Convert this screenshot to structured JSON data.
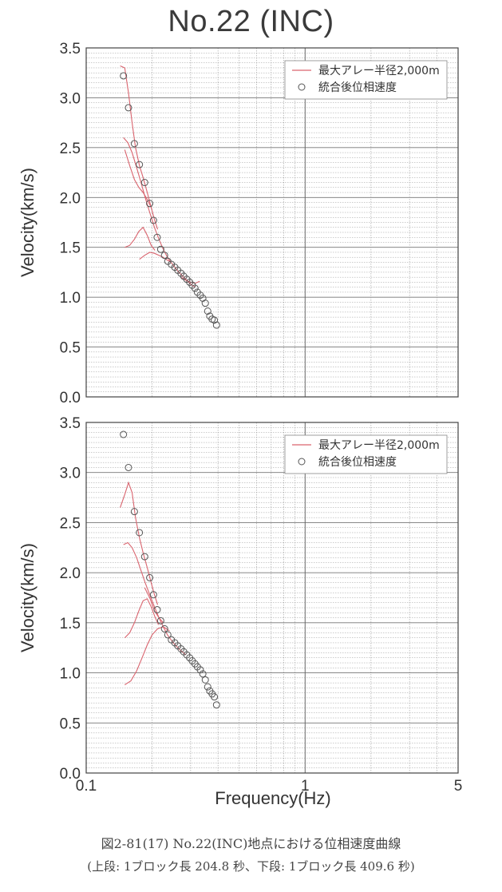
{
  "title": "No.22 (INC)",
  "caption": {
    "line1": "図2-81(17) No.22(INC)地点における位相速度曲線",
    "line2": "(上段: 1ブロック長 204.8 秒、下段: 1ブロック長 409.6 秒)"
  },
  "colors": {
    "curve": "#d9646e",
    "marker": "#555555",
    "grid": "#9a9a9a",
    "axis": "#444444"
  },
  "chart_data": [
    {
      "type": "scatter",
      "xscale": "log",
      "xlim": [
        0.1,
        5
      ],
      "ylim": [
        0,
        3.5
      ],
      "xlabel": "",
      "ylabel": "Velocity(km/s)",
      "xticks": [
        "0.1",
        "1",
        "5"
      ],
      "yticks": [
        "0.0",
        "0.5",
        "1.0",
        "1.5",
        "2.0",
        "2.5",
        "3.0",
        "3.5"
      ],
      "grid": true,
      "legend_position": "top-right",
      "legend": [
        "最大アレー半径2,000m",
        "統合後位相速度"
      ],
      "series": [
        {
          "kind": "points",
          "x": [
            0.148,
            0.156,
            0.166,
            0.175,
            0.185,
            0.195,
            0.203,
            0.211,
            0.219,
            0.228,
            0.236,
            0.245,
            0.254,
            0.262,
            0.271,
            0.279,
            0.288,
            0.297,
            0.305,
            0.314,
            0.322,
            0.332,
            0.341,
            0.35,
            0.359,
            0.367,
            0.376,
            0.385,
            0.394
          ],
          "y": [
            3.22,
            2.9,
            2.54,
            2.33,
            2.15,
            1.94,
            1.77,
            1.6,
            1.48,
            1.42,
            1.36,
            1.33,
            1.3,
            1.27,
            1.24,
            1.21,
            1.18,
            1.15,
            1.12,
            1.09,
            1.05,
            1.02,
            0.99,
            0.94,
            0.86,
            0.81,
            0.78,
            0.77,
            0.72
          ]
        },
        {
          "kind": "curves",
          "lines": [
            {
              "x": [
                0.143,
                0.15,
                0.156,
                0.162,
                0.168,
                0.175,
                0.182,
                0.19,
                0.198,
                0.205,
                0.212
              ],
              "y": [
                3.32,
                3.3,
                3.05,
                2.75,
                2.5,
                2.32,
                2.2,
                2.05,
                1.9,
                1.78,
                1.68
              ]
            },
            {
              "x": [
                0.148,
                0.155,
                0.162,
                0.17,
                0.178,
                0.186,
                0.195,
                0.205,
                0.215,
                0.225,
                0.235,
                0.25,
                0.265,
                0.285,
                0.3,
                0.315
              ],
              "y": [
                2.6,
                2.55,
                2.45,
                2.3,
                2.15,
                2.0,
                1.85,
                1.7,
                1.58,
                1.48,
                1.4,
                1.32,
                1.25,
                1.18,
                1.13,
                1.1
              ]
            },
            {
              "x": [
                0.15,
                0.158,
                0.166,
                0.174,
                0.182,
                0.19,
                0.198
              ],
              "y": [
                2.48,
                2.32,
                2.18,
                2.1,
                2.05,
                1.98,
                1.9
              ]
            },
            {
              "x": [
                0.15,
                0.158,
                0.166,
                0.174,
                0.182,
                0.19,
                0.198,
                0.206
              ],
              "y": [
                1.5,
                1.52,
                1.58,
                1.66,
                1.7,
                1.62,
                1.52,
                1.47
              ]
            },
            {
              "x": [
                0.175,
                0.185,
                0.195,
                0.205,
                0.215,
                0.225,
                0.235,
                0.245
              ],
              "y": [
                1.38,
                1.42,
                1.45,
                1.44,
                1.42,
                1.4,
                1.37,
                1.35
              ]
            },
            {
              "x": [
                0.27,
                0.285,
                0.3,
                0.315,
                0.33
              ],
              "y": [
                1.2,
                1.17,
                1.15,
                1.14,
                1.16
              ]
            }
          ]
        }
      ]
    },
    {
      "type": "scatter",
      "xscale": "log",
      "xlim": [
        0.1,
        5
      ],
      "ylim": [
        0,
        3.5
      ],
      "xlabel": "Frequency(Hz)",
      "ylabel": "Velocity(km/s)",
      "xticks": [
        "0.1",
        "1",
        "5"
      ],
      "yticks": [
        "0.0",
        "0.5",
        "1.0",
        "1.5",
        "2.0",
        "2.5",
        "3.0",
        "3.5"
      ],
      "grid": true,
      "legend_position": "top-right",
      "legend": [
        "最大アレー半径2,000m",
        "統合後位相速度"
      ],
      "series": [
        {
          "kind": "points",
          "x": [
            0.148,
            0.156,
            0.166,
            0.175,
            0.185,
            0.195,
            0.203,
            0.211,
            0.219,
            0.228,
            0.236,
            0.245,
            0.254,
            0.262,
            0.271,
            0.279,
            0.288,
            0.297,
            0.305,
            0.314,
            0.322,
            0.332,
            0.341,
            0.35,
            0.359,
            0.367,
            0.376,
            0.385,
            0.394
          ],
          "y": [
            3.38,
            3.05,
            2.61,
            2.4,
            2.16,
            1.95,
            1.78,
            1.63,
            1.52,
            1.44,
            1.38,
            1.33,
            1.3,
            1.27,
            1.24,
            1.21,
            1.18,
            1.15,
            1.12,
            1.09,
            1.06,
            1.03,
            0.99,
            0.93,
            0.86,
            0.82,
            0.79,
            0.76,
            0.68
          ]
        },
        {
          "kind": "curves",
          "lines": [
            {
              "x": [
                0.143,
                0.15,
                0.156,
                0.162,
                0.168,
                0.175,
                0.182,
                0.19,
                0.198,
                0.205,
                0.212
              ],
              "y": [
                2.65,
                2.78,
                2.9,
                2.8,
                2.55,
                2.35,
                2.2,
                2.05,
                1.9,
                1.78,
                1.68
              ]
            },
            {
              "x": [
                0.148,
                0.155,
                0.162,
                0.17,
                0.178,
                0.186,
                0.195,
                0.205,
                0.215,
                0.225,
                0.235,
                0.25,
                0.265,
                0.285
              ],
              "y": [
                2.28,
                2.3,
                2.25,
                2.15,
                2.02,
                1.9,
                1.78,
                1.66,
                1.55,
                1.46,
                1.38,
                1.3,
                1.24,
                1.18
              ]
            },
            {
              "x": [
                0.15,
                0.158,
                0.166,
                0.174,
                0.182,
                0.19,
                0.198,
                0.206,
                0.214
              ],
              "y": [
                1.35,
                1.4,
                1.5,
                1.62,
                1.72,
                1.74,
                1.66,
                1.56,
                1.48
              ]
            },
            {
              "x": [
                0.15,
                0.16,
                0.17,
                0.18,
                0.19,
                0.2,
                0.212,
                0.225,
                0.24
              ],
              "y": [
                0.88,
                0.92,
                1.02,
                1.15,
                1.28,
                1.38,
                1.44,
                1.46,
                1.42
              ]
            },
            {
              "x": [
                0.185,
                0.195,
                0.205,
                0.215,
                0.225
              ],
              "y": [
                1.85,
                1.75,
                1.62,
                1.55,
                1.5
              ]
            }
          ]
        }
      ]
    }
  ]
}
